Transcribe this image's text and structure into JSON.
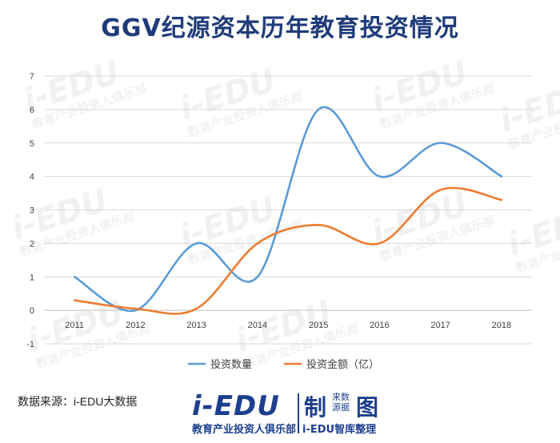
{
  "title": "GGV纪源资本历年教育投资情况",
  "source_note": "数据来源：i-EDU大数据",
  "brand": {
    "logo": "i-EDU",
    "slogan": "教育产业投资人俱乐部",
    "zhi": "制",
    "small_top": "来数",
    "small_bottom": "源据",
    "tu": "图",
    "subline": "i-EDU智库整理"
  },
  "watermark": {
    "logo": "i-EDU",
    "slogan": "教育产业投资人俱乐部"
  },
  "colors": {
    "series1": "#5b9bd5",
    "series2": "#ed7d31",
    "grid": "#d9d9d9",
    "title": "#1f3b7a"
  },
  "chart_data": {
    "type": "line",
    "smooth": true,
    "categories": [
      "2011",
      "2012",
      "2013",
      "2014",
      "2015",
      "2016",
      "2017",
      "2018"
    ],
    "series": [
      {
        "name": "投资数量",
        "values": [
          1,
          0,
          2,
          1,
          6,
          4,
          5,
          4
        ]
      },
      {
        "name": "投资金额（亿）",
        "values": [
          0.3,
          0.05,
          0.05,
          2,
          2.55,
          2,
          3.6,
          3.3
        ]
      }
    ],
    "ylim": [
      -1,
      7
    ],
    "yticks": [
      "-1",
      "0",
      "1",
      "2",
      "3",
      "4",
      "5",
      "6",
      "7"
    ],
    "grid": true,
    "legend": "bottom"
  }
}
